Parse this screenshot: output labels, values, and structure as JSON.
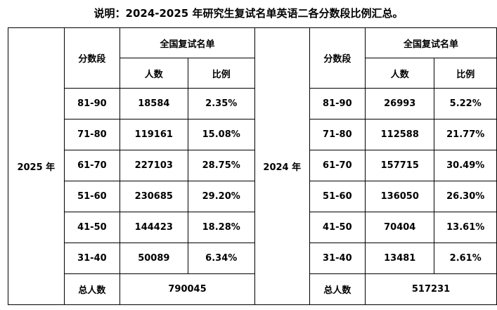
{
  "title": "说明：2024-2025 年研究生复试名单英语二各分数段比例汇总。",
  "headers": {
    "segment": "分数段",
    "group": "全国复试名单",
    "count": "人数",
    "ratio": "比例",
    "total_label": "总人数"
  },
  "year_left": "2025 年",
  "year_right": "2024 年",
  "segments": [
    "81-90",
    "71-80",
    "61-70",
    "51-60",
    "41-50",
    "31-40"
  ],
  "data_2025": [
    {
      "count": "18584",
      "ratio": "2.35%"
    },
    {
      "count": "119161",
      "ratio": "15.08%"
    },
    {
      "count": "227103",
      "ratio": "28.75%"
    },
    {
      "count": "230685",
      "ratio": "29.20%"
    },
    {
      "count": "144423",
      "ratio": "18.28%"
    },
    {
      "count": "50089",
      "ratio": "6.34%"
    }
  ],
  "data_2024": [
    {
      "count": "26993",
      "ratio": "5.22%"
    },
    {
      "count": "112588",
      "ratio": "21.77%"
    },
    {
      "count": "157715",
      "ratio": "30.49%"
    },
    {
      "count": "136050",
      "ratio": "26.30%"
    },
    {
      "count": "70404",
      "ratio": "13.61%"
    },
    {
      "count": "13481",
      "ratio": "2.61%"
    }
  ],
  "total_2025": "790045",
  "total_2024": "517231"
}
